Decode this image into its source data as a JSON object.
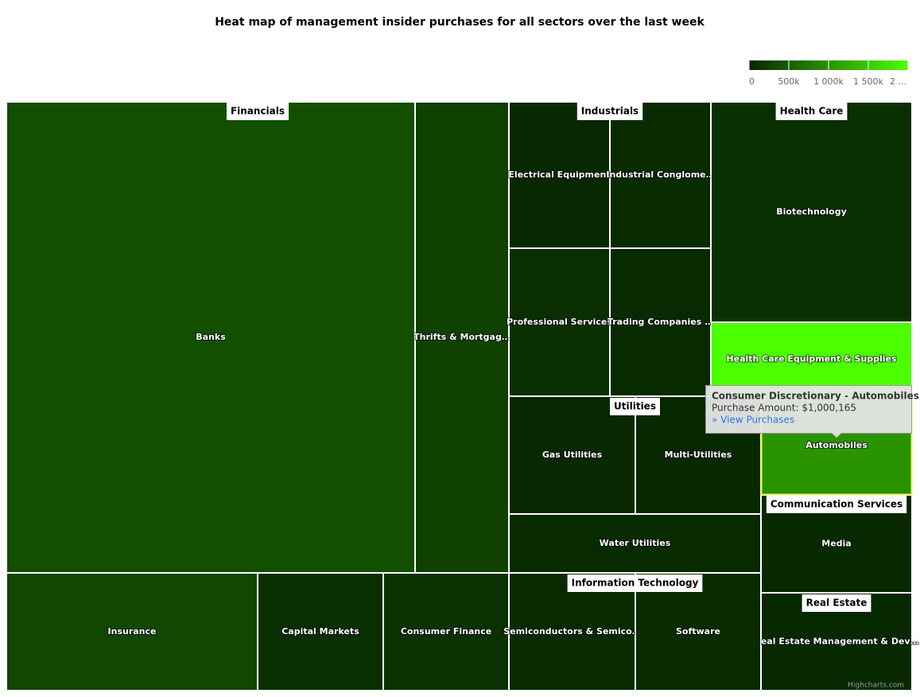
{
  "chart_data": {
    "type": "treemap",
    "title": "Heat map of management insider purchases for all sectors over the last week",
    "color_axis": {
      "lim": [
        0,
        2000000
      ],
      "ticks": [
        0,
        {
          "value": 500000,
          "label": "500k"
        },
        {
          "value": 1000000,
          "label": "1 000k"
        },
        {
          "value": 1500000,
          "label": "1 500k"
        },
        {
          "value": 2000000,
          "label": "2 ..."
        }
      ],
      "min_color": "#062600",
      "max_color": "#4cff00"
    },
    "groups": [
      {
        "name": "Financials",
        "cells": [
          {
            "name": "Banks",
            "value": 380000
          },
          {
            "name": "Thrifts & Mortgag…",
            "value": 250000
          },
          {
            "name": "Insurance",
            "value": 300000
          },
          {
            "name": "Capital Markets",
            "value": 80000
          },
          {
            "name": "Consumer Finance",
            "value": 110000
          }
        ]
      },
      {
        "name": "Industrials",
        "cells": [
          {
            "name": "Electrical Equipment",
            "value": 20000
          },
          {
            "name": "Industrial Conglome…",
            "value": 50000
          },
          {
            "name": "Professional Services",
            "value": 80000
          },
          {
            "name": "Trading Companies …",
            "value": 40000
          }
        ]
      },
      {
        "name": "Health Care",
        "cells": [
          {
            "name": "Biotechnology",
            "value": 90000
          },
          {
            "name": "Health Care Equipment & Supplies",
            "value": 2000000
          }
        ]
      },
      {
        "name": "Utilities",
        "cells": [
          {
            "name": "Gas Utilities",
            "value": 20000
          },
          {
            "name": "Multi-Utilities",
            "value": 30000
          },
          {
            "name": "Water Utilities",
            "value": 40000
          }
        ]
      },
      {
        "name": "Consumer Discretionary",
        "cells": [
          {
            "name": "Automobiles",
            "value": 1000165
          }
        ]
      },
      {
        "name": "Communication Services",
        "cells": [
          {
            "name": "Media",
            "value": 30000
          }
        ]
      },
      {
        "name": "Real Estate",
        "cells": [
          {
            "name": "Real Estate Management & Dev…",
            "value": 30000
          }
        ]
      },
      {
        "name": "Information Technology",
        "cells": [
          {
            "name": "Semiconductors & Semico…",
            "value": 40000
          },
          {
            "name": "Software",
            "value": 50000
          }
        ]
      }
    ],
    "tooltip": {
      "title": "Consumer Discretionary - Automobiles",
      "text": "Purchase Amount: $1,000,165",
      "link": "» View Purchases"
    },
    "credits": "Highcharts.com"
  }
}
